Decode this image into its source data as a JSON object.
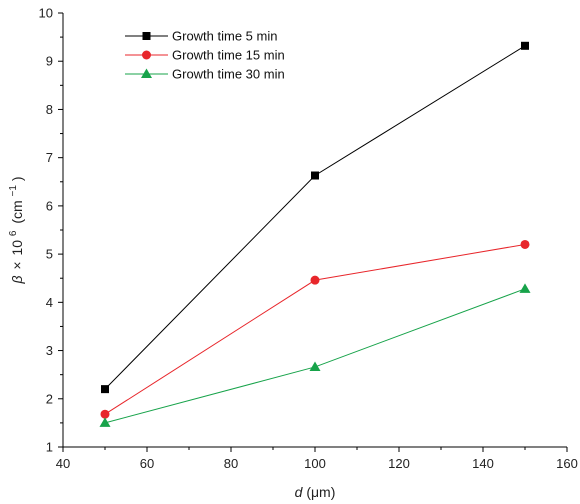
{
  "chart_data": {
    "type": "line",
    "xlabel": {
      "var": "d",
      "unit": "(μm)"
    },
    "ylabel": {
      "var": "β",
      "times": "×",
      "power": "10",
      "exp": "6",
      "unit_open": "(cm",
      "unit_exp": "−1",
      "unit_close": ")"
    },
    "xlim": [
      40,
      160
    ],
    "ylim": [
      1,
      10
    ],
    "xticks": [
      40,
      60,
      80,
      100,
      120,
      140,
      160
    ],
    "yticks": [
      1,
      2,
      3,
      4,
      5,
      6,
      7,
      8,
      9,
      10
    ],
    "grid": false,
    "legend": "top-left",
    "x": [
      50,
      100,
      150
    ],
    "series": [
      {
        "name": "Growth time 5 min",
        "values": [
          2.2,
          6.63,
          9.32
        ],
        "color": "#000000",
        "marker": "square"
      },
      {
        "name": "Growth time 15 min",
        "values": [
          1.68,
          4.46,
          5.2
        ],
        "color": "#e8262b",
        "marker": "circle"
      },
      {
        "name": "Growth time 30 min",
        "values": [
          1.5,
          2.66,
          4.28
        ],
        "color": "#17a34a",
        "marker": "triangle"
      }
    ]
  }
}
